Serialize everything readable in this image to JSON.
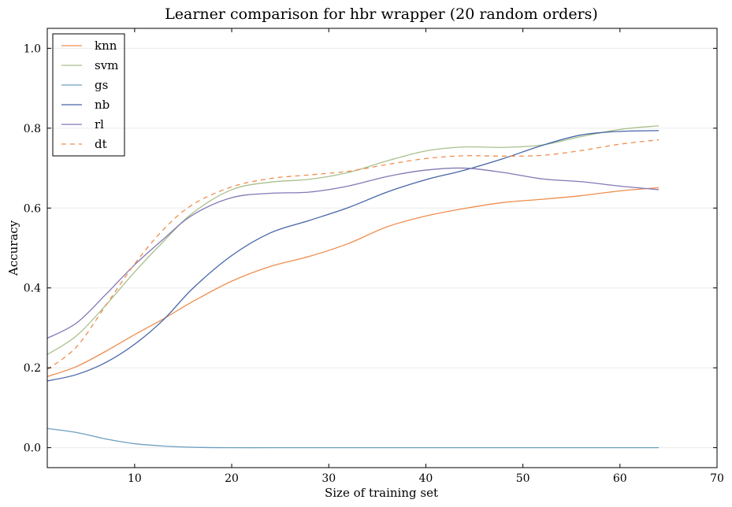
{
  "chart_data": {
    "type": "line",
    "title": "Learner comparison for hbr wrapper (20 random orders)",
    "xlabel": "Size of training set",
    "ylabel": "Accuracy",
    "xlim": [
      1,
      70
    ],
    "ylim": [
      -0.05,
      1.05
    ],
    "xticks": [
      10,
      20,
      30,
      40,
      50,
      60,
      70
    ],
    "yticks": [
      0.0,
      0.2,
      0.4,
      0.6,
      0.8,
      1.0
    ],
    "xtick_labels": [
      "10",
      "20",
      "30",
      "40",
      "50",
      "60",
      "70"
    ],
    "ytick_labels": [
      "0.0",
      "0.2",
      "0.4",
      "0.6",
      "0.8",
      "1.0"
    ],
    "grid": true,
    "legend_position": "top-left",
    "x": [
      1,
      4,
      7,
      10,
      13,
      16,
      20,
      24,
      28,
      32,
      36,
      40,
      44,
      48,
      52,
      56,
      60,
      64
    ],
    "series": [
      {
        "name": "knn",
        "color": "#ee8d4e",
        "dash": false,
        "values": [
          0.178,
          0.203,
          0.241,
          0.283,
          0.323,
          0.366,
          0.417,
          0.454,
          0.479,
          0.511,
          0.553,
          0.58,
          0.599,
          0.614,
          0.622,
          0.631,
          0.643,
          0.651
        ]
      },
      {
        "name": "svm",
        "color": "#a9c08c",
        "dash": false,
        "values": [
          0.233,
          0.28,
          0.356,
          0.44,
          0.517,
          0.588,
          0.646,
          0.665,
          0.672,
          0.689,
          0.718,
          0.743,
          0.753,
          0.752,
          0.758,
          0.779,
          0.797,
          0.806
        ]
      },
      {
        "name": "gs",
        "color": "#6d9fc0",
        "dash": false,
        "values": [
          0.048,
          0.038,
          0.022,
          0.01,
          0.004,
          0.001,
          0.0,
          0.0,
          0.0,
          0.0,
          0.0,
          0.0,
          0.0,
          0.0,
          0.0,
          0.0,
          0.0,
          0.0
        ]
      },
      {
        "name": "nb",
        "color": "#4565a7",
        "dash": false,
        "values": [
          0.167,
          0.183,
          0.213,
          0.259,
          0.321,
          0.399,
          0.481,
          0.538,
          0.569,
          0.601,
          0.64,
          0.671,
          0.695,
          0.724,
          0.757,
          0.783,
          0.792,
          0.794
        ]
      },
      {
        "name": "rl",
        "color": "#8178b5",
        "dash": false,
        "values": [
          0.274,
          0.312,
          0.383,
          0.458,
          0.523,
          0.583,
          0.626,
          0.637,
          0.64,
          0.655,
          0.679,
          0.695,
          0.7,
          0.689,
          0.673,
          0.666,
          0.655,
          0.646
        ]
      },
      {
        "name": "dt",
        "color": "#ee8d4e",
        "dash": true,
        "values": [
          0.196,
          0.252,
          0.355,
          0.46,
          0.547,
          0.609,
          0.653,
          0.674,
          0.683,
          0.692,
          0.709,
          0.724,
          0.731,
          0.73,
          0.732,
          0.744,
          0.76,
          0.771
        ]
      }
    ]
  }
}
